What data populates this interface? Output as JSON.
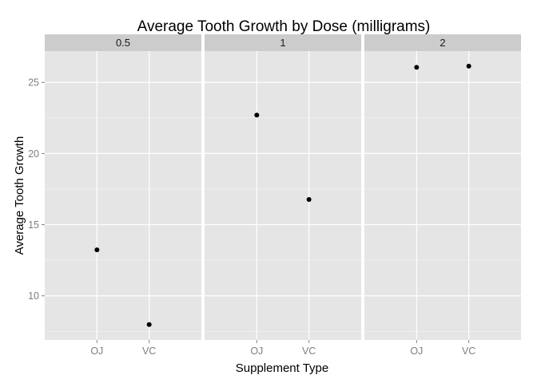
{
  "chart_data": {
    "type": "scatter",
    "title": "Average Tooth Growth by Dose (milligrams)",
    "xlabel": "Supplement Type",
    "ylabel": "Average Tooth Growth",
    "facet_labels": [
      "0.5",
      "1",
      "2"
    ],
    "categories": [
      "OJ",
      "VC"
    ],
    "yticks": [
      10,
      15,
      20,
      25
    ],
    "ylim": [
      6.9,
      27.2
    ],
    "grid": true,
    "colors": {
      "panel": "#e5e5e5",
      "strip": "#cccccc",
      "grid_major": "#ffffff",
      "grid_minor": "#f2f2f2",
      "point": "#000000"
    },
    "facets": [
      {
        "dose": "0.5",
        "points": [
          {
            "x": "OJ",
            "y": 13.23
          },
          {
            "x": "VC",
            "y": 7.98
          }
        ]
      },
      {
        "dose": "1",
        "points": [
          {
            "x": "OJ",
            "y": 22.7
          },
          {
            "x": "VC",
            "y": 16.77
          }
        ]
      },
      {
        "dose": "2",
        "points": [
          {
            "x": "OJ",
            "y": 26.06
          },
          {
            "x": "VC",
            "y": 26.14
          }
        ]
      }
    ]
  }
}
